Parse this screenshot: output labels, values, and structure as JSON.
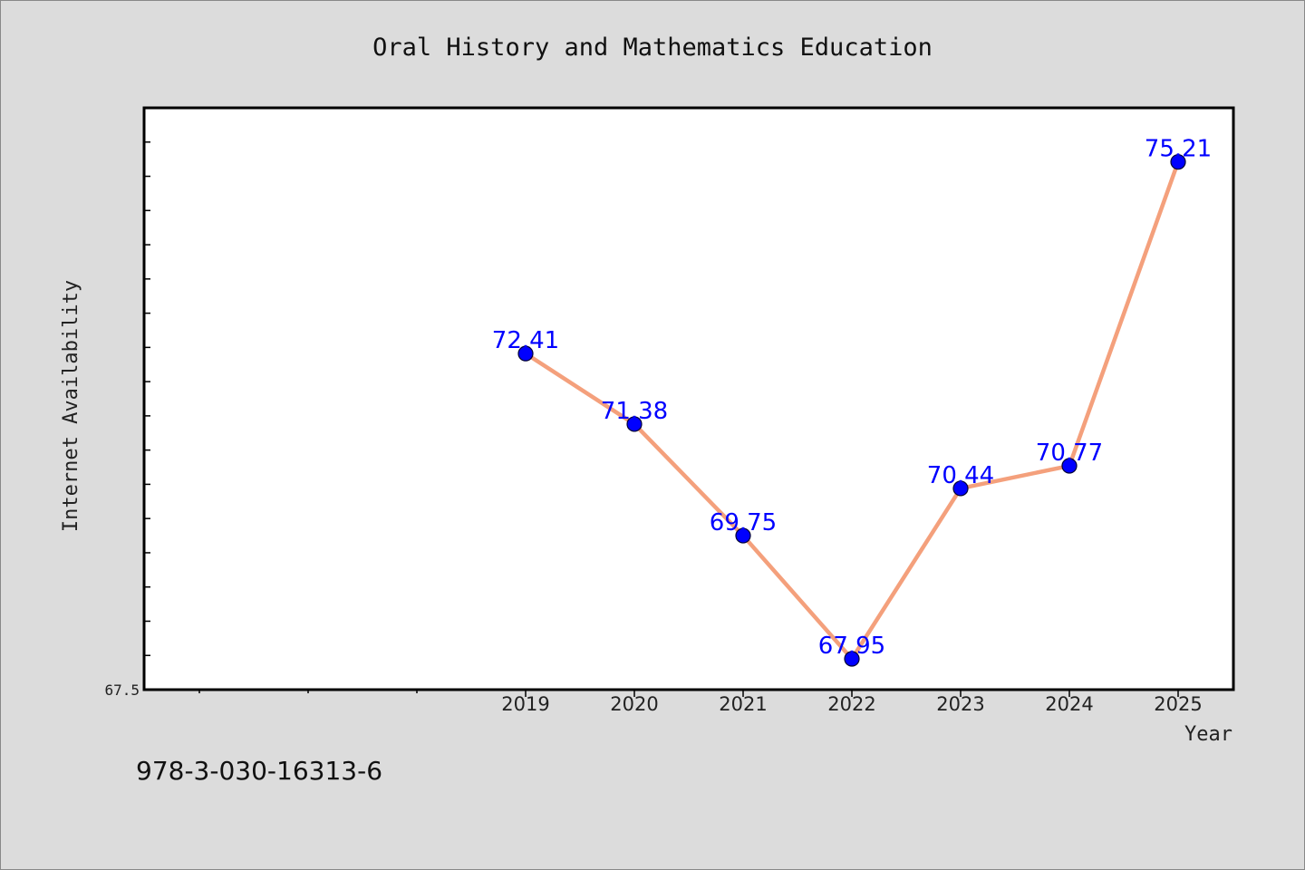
{
  "chart_data": {
    "type": "line",
    "title": "Oral History and Mathematics Education",
    "xlabel": "Year",
    "ylabel": "Internet Availability",
    "x": [
      "2019",
      "2020",
      "2021",
      "2022",
      "2023",
      "2024",
      "2025"
    ],
    "series": [
      {
        "values": [
          72.41,
          71.38,
          69.75,
          67.95,
          70.44,
          70.77,
          75.21
        ],
        "line_color": "#f4a07c",
        "marker_color": "#0000ff"
      }
    ],
    "y_tick_label": "67.5",
    "ylim": [
      67.5,
      76.0
    ],
    "grid": false,
    "legend": "none",
    "plot_background": "#ffffff",
    "figure_background": "#dcdcdc"
  },
  "footer": {
    "isbn": "978-3-030-16313-6"
  }
}
